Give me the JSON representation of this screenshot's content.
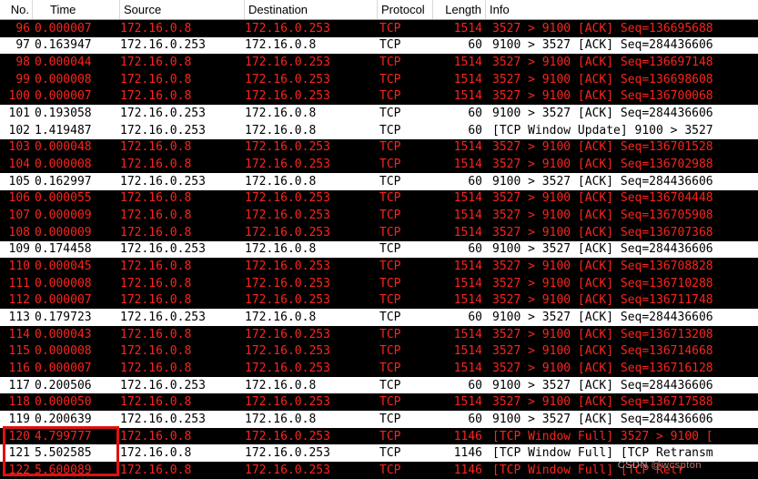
{
  "header": {
    "columns": [
      "No.",
      "Time",
      "Source",
      "Destination",
      "Protocol",
      "Length",
      "Info"
    ]
  },
  "colors": {
    "bad_tcp_row_bg": "#000000",
    "bad_tcp_row_text": "#fb241c",
    "normal_row_bg": "#ffffff",
    "normal_row_text": "#000000",
    "annotation_box": "#e01010"
  },
  "rows": [
    {
      "no": "96",
      "time": "0.000007",
      "src": "172.16.0.8",
      "dst": "172.16.0.253",
      "proto": "TCP",
      "len": "1514",
      "info": "3527 > 9100 [ACK] Seq=136695688",
      "style": "dark"
    },
    {
      "no": "97",
      "time": "0.163947",
      "src": "172.16.0.253",
      "dst": "172.16.0.8",
      "proto": "TCP",
      "len": "60",
      "info": "9100 > 3527 [ACK] Seq=284436606",
      "style": "light"
    },
    {
      "no": "98",
      "time": "0.000044",
      "src": "172.16.0.8",
      "dst": "172.16.0.253",
      "proto": "TCP",
      "len": "1514",
      "info": "3527 > 9100 [ACK] Seq=136697148",
      "style": "dark"
    },
    {
      "no": "99",
      "time": "0.000008",
      "src": "172.16.0.8",
      "dst": "172.16.0.253",
      "proto": "TCP",
      "len": "1514",
      "info": "3527 > 9100 [ACK] Seq=136698608",
      "style": "dark"
    },
    {
      "no": "100",
      "time": "0.000007",
      "src": "172.16.0.8",
      "dst": "172.16.0.253",
      "proto": "TCP",
      "len": "1514",
      "info": "3527 > 9100 [ACK] Seq=136700068",
      "style": "dark"
    },
    {
      "no": "101",
      "time": "0.193058",
      "src": "172.16.0.253",
      "dst": "172.16.0.8",
      "proto": "TCP",
      "len": "60",
      "info": "9100 > 3527 [ACK] Seq=284436606",
      "style": "light"
    },
    {
      "no": "102",
      "time": "1.419487",
      "src": "172.16.0.253",
      "dst": "172.16.0.8",
      "proto": "TCP",
      "len": "60",
      "info": "[TCP Window Update] 9100 > 3527",
      "style": "light"
    },
    {
      "no": "103",
      "time": "0.000048",
      "src": "172.16.0.8",
      "dst": "172.16.0.253",
      "proto": "TCP",
      "len": "1514",
      "info": "3527 > 9100 [ACK] Seq=136701528",
      "style": "dark"
    },
    {
      "no": "104",
      "time": "0.000008",
      "src": "172.16.0.8",
      "dst": "172.16.0.253",
      "proto": "TCP",
      "len": "1514",
      "info": "3527 > 9100 [ACK] Seq=136702988",
      "style": "dark"
    },
    {
      "no": "105",
      "time": "0.162997",
      "src": "172.16.0.253",
      "dst": "172.16.0.8",
      "proto": "TCP",
      "len": "60",
      "info": "9100 > 3527 [ACK] Seq=284436606",
      "style": "light"
    },
    {
      "no": "106",
      "time": "0.000055",
      "src": "172.16.0.8",
      "dst": "172.16.0.253",
      "proto": "TCP",
      "len": "1514",
      "info": "3527 > 9100 [ACK] Seq=136704448",
      "style": "dark"
    },
    {
      "no": "107",
      "time": "0.000009",
      "src": "172.16.0.8",
      "dst": "172.16.0.253",
      "proto": "TCP",
      "len": "1514",
      "info": "3527 > 9100 [ACK] Seq=136705908",
      "style": "dark"
    },
    {
      "no": "108",
      "time": "0.000009",
      "src": "172.16.0.8",
      "dst": "172.16.0.253",
      "proto": "TCP",
      "len": "1514",
      "info": "3527 > 9100 [ACK] Seq=136707368",
      "style": "dark"
    },
    {
      "no": "109",
      "time": "0.174458",
      "src": "172.16.0.253",
      "dst": "172.16.0.8",
      "proto": "TCP",
      "len": "60",
      "info": "9100 > 3527 [ACK] Seq=284436606",
      "style": "light"
    },
    {
      "no": "110",
      "time": "0.000045",
      "src": "172.16.0.8",
      "dst": "172.16.0.253",
      "proto": "TCP",
      "len": "1514",
      "info": "3527 > 9100 [ACK] Seq=136708828",
      "style": "dark"
    },
    {
      "no": "111",
      "time": "0.000008",
      "src": "172.16.0.8",
      "dst": "172.16.0.253",
      "proto": "TCP",
      "len": "1514",
      "info": "3527 > 9100 [ACK] Seq=136710288",
      "style": "dark"
    },
    {
      "no": "112",
      "time": "0.000007",
      "src": "172.16.0.8",
      "dst": "172.16.0.253",
      "proto": "TCP",
      "len": "1514",
      "info": "3527 > 9100 [ACK] Seq=136711748",
      "style": "dark"
    },
    {
      "no": "113",
      "time": "0.179723",
      "src": "172.16.0.253",
      "dst": "172.16.0.8",
      "proto": "TCP",
      "len": "60",
      "info": "9100 > 3527 [ACK] Seq=284436606",
      "style": "light"
    },
    {
      "no": "114",
      "time": "0.000043",
      "src": "172.16.0.8",
      "dst": "172.16.0.253",
      "proto": "TCP",
      "len": "1514",
      "info": "3527 > 9100 [ACK] Seq=136713208",
      "style": "dark"
    },
    {
      "no": "115",
      "time": "0.000008",
      "src": "172.16.0.8",
      "dst": "172.16.0.253",
      "proto": "TCP",
      "len": "1514",
      "info": "3527 > 9100 [ACK] Seq=136714668",
      "style": "dark"
    },
    {
      "no": "116",
      "time": "0.000007",
      "src": "172.16.0.8",
      "dst": "172.16.0.253",
      "proto": "TCP",
      "len": "1514",
      "info": "3527 > 9100 [ACK] Seq=136716128",
      "style": "dark"
    },
    {
      "no": "117",
      "time": "0.200506",
      "src": "172.16.0.253",
      "dst": "172.16.0.8",
      "proto": "TCP",
      "len": "60",
      "info": "9100 > 3527 [ACK] Seq=284436606",
      "style": "light"
    },
    {
      "no": "118",
      "time": "0.000050",
      "src": "172.16.0.8",
      "dst": "172.16.0.253",
      "proto": "TCP",
      "len": "1514",
      "info": "3527 > 9100 [ACK] Seq=136717588",
      "style": "dark"
    },
    {
      "no": "119",
      "time": "0.200639",
      "src": "172.16.0.253",
      "dst": "172.16.0.8",
      "proto": "TCP",
      "len": "60",
      "info": "9100 > 3527 [ACK] Seq=284436606",
      "style": "light"
    },
    {
      "no": "120",
      "time": "4.799777",
      "src": "172.16.0.8",
      "dst": "172.16.0.253",
      "proto": "TCP",
      "len": "1146",
      "info": "[TCP Window Full] 3527 > 9100 [",
      "style": "dark"
    },
    {
      "no": "121",
      "time": "5.502585",
      "src": "172.16.0.8",
      "dst": "172.16.0.253",
      "proto": "TCP",
      "len": "1146",
      "info": "[TCP Window Full] [TCP Retransm",
      "style": "light"
    },
    {
      "no": "122",
      "time": "5.600089",
      "src": "172.16.0.8",
      "dst": "172.16.0.253",
      "proto": "TCP",
      "len": "1146",
      "info": "[TCP Window Full] [TCP Retr",
      "style": "dark"
    }
  ],
  "watermark": {
    "brand": "CSDN",
    "handle": "@wcspton"
  }
}
